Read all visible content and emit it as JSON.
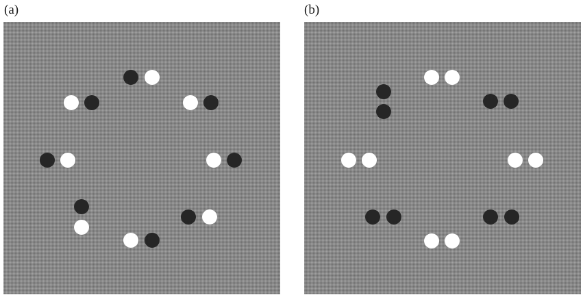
{
  "panels": [
    {
      "id": "a",
      "label": "(a)",
      "pairs": [
        {
          "first": "dark",
          "second": "light"
        },
        {
          "first": "light",
          "second": "dark"
        },
        {
          "first": "light",
          "second": "dark"
        },
        {
          "first": "dark",
          "second": "light"
        },
        {
          "first": "light",
          "second": "dark"
        },
        {
          "first": "dark",
          "second": "light"
        },
        {
          "first": "dark",
          "second": "light"
        },
        {
          "first": "light",
          "second": "dark"
        }
      ]
    },
    {
      "id": "b",
      "label": "(b)",
      "pairs": [
        {
          "first": "light",
          "second": "light"
        },
        {
          "first": "dark",
          "second": "dark"
        },
        {
          "first": "dark",
          "second": "dark"
        },
        {
          "first": "light",
          "second": "light"
        },
        {
          "first": "light",
          "second": "light"
        },
        {
          "first": "dark",
          "second": "dark"
        },
        {
          "first": "dark",
          "second": "dark"
        },
        {
          "first": "light",
          "second": "light"
        }
      ]
    }
  ],
  "colors": {
    "background": "#8a8a8a",
    "dark_dot": "#262626",
    "light_dot": "#ffffff"
  }
}
